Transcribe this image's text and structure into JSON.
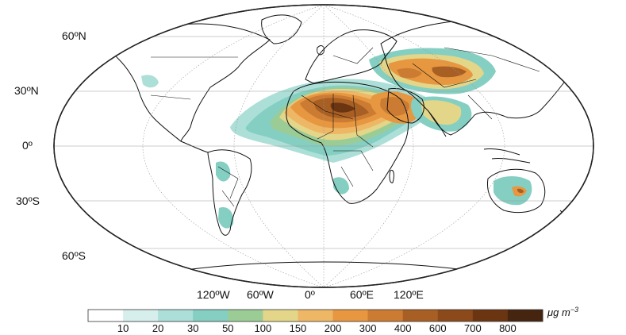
{
  "map": {
    "lat_labels": [
      "60ºN",
      "30ºN",
      "0º",
      "30ºS",
      "60ºS"
    ],
    "lon_labels": [
      "120ºW",
      "60ºW",
      "0º",
      "60ºE",
      "120ºE"
    ]
  },
  "colorbar": {
    "ticks": [
      "10",
      "20",
      "30",
      "50",
      "100",
      "150",
      "200",
      "300",
      "400",
      "600",
      "700",
      "800"
    ],
    "colors": [
      "#ffffff",
      "#d6efec",
      "#acdfd7",
      "#84cfc2",
      "#9ccc96",
      "#e3d689",
      "#eeb766",
      "#e69740",
      "#cc7c32",
      "#a85f24",
      "#8c4a1b",
      "#6b3512",
      "#452410"
    ],
    "unit_prefix": "μg m",
    "unit_exp": "−3"
  }
}
